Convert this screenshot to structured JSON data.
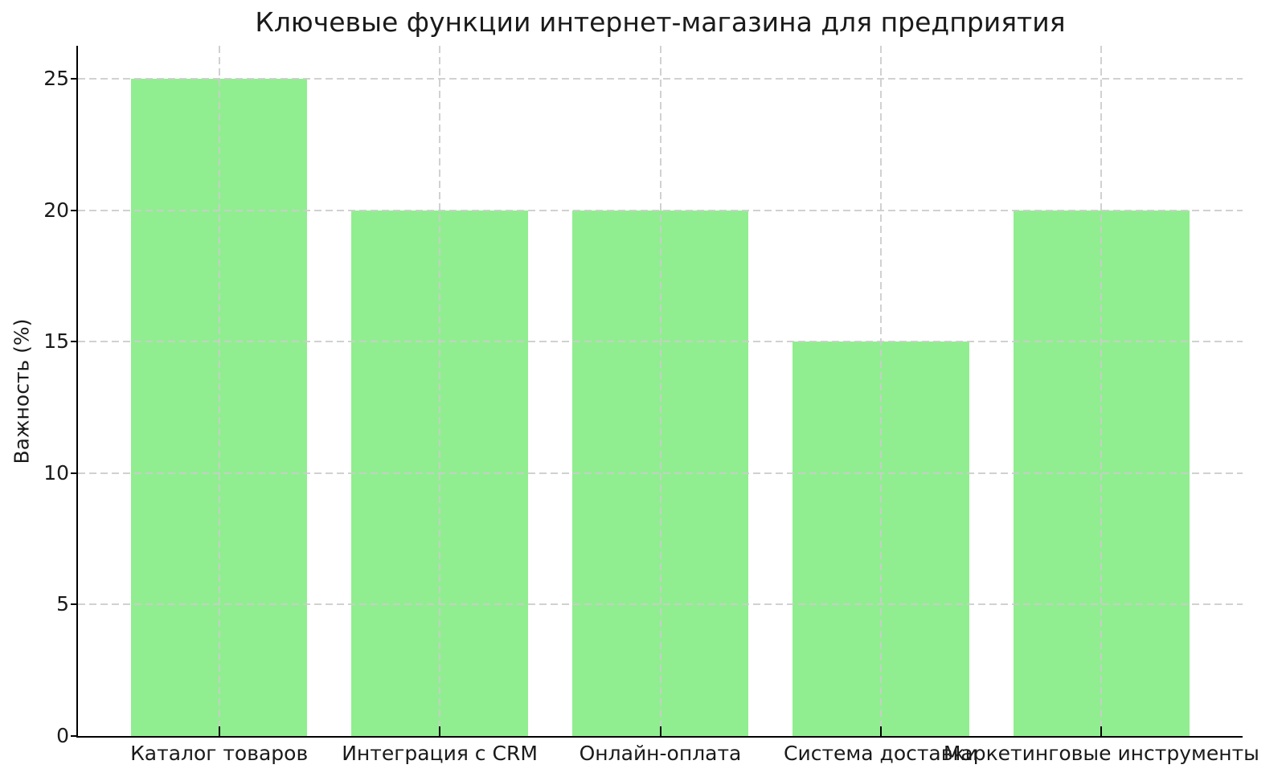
{
  "figure": {
    "background_color": "#ffffff"
  },
  "chart_data": {
    "type": "bar",
    "title": "Ключевые функции интернет-магазина для предприятия",
    "categories": [
      "Каталог товаров",
      "Интеграция с CRM",
      "Онлайн-оплата",
      "Система доставки",
      "Маркетинговые инструменты"
    ],
    "values": [
      25,
      20,
      20,
      15,
      20
    ],
    "xlabel": "",
    "ylabel": "Важность (%)",
    "ylim": [
      0,
      26.25
    ],
    "yticks": [
      0,
      5,
      10,
      15,
      20,
      25
    ],
    "bar_color": "#90EE90",
    "grid": true,
    "grid_color": "#cccccc",
    "axis_color": "#000000",
    "text_color": "#1a1a1a",
    "legend": "none"
  }
}
